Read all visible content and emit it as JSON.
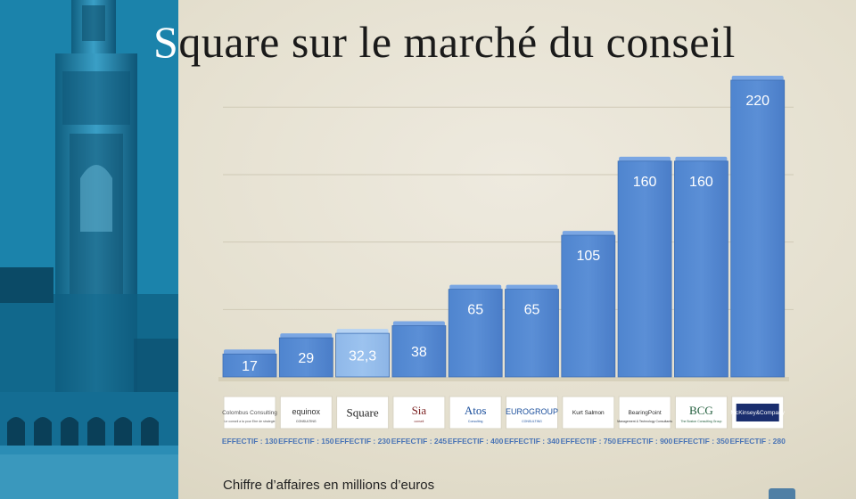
{
  "title": {
    "first_letter": "S",
    "rest": "quare sur le marché du conseil"
  },
  "footnote": "Chiffre d’affaires en millions d’euros",
  "logos": [
    {
      "name": "Colombus Consulting",
      "lines": [
        "Colombus Consulting",
        "Le conseil a la pour Etre de strategie"
      ],
      "color": "#555555"
    },
    {
      "name": "equinox",
      "lines": [
        "equinox",
        "CONSULTING"
      ],
      "color": "#333333"
    },
    {
      "name": "Square",
      "lines": [
        "Square"
      ],
      "color": "#222222"
    },
    {
      "name": "Sia",
      "lines": [
        "Sia",
        "conseil"
      ],
      "color": "#7a1f1f"
    },
    {
      "name": "Atos Consulting",
      "lines": [
        "Atos",
        "Consulting"
      ],
      "color": "#1b4f9c"
    },
    {
      "name": "EUROGROUP",
      "lines": [
        "EUROGROUP",
        "CONSULTING"
      ],
      "color": "#1b4f9c"
    },
    {
      "name": "Kurt Salmon",
      "lines": [
        "Kurt Salmon"
      ],
      "color": "#222222"
    },
    {
      "name": "BearingPoint",
      "lines": [
        "BearingPoint",
        "Management & Technology Consultants"
      ],
      "color": "#333333"
    },
    {
      "name": "BCG",
      "lines": [
        "BCG",
        "The Boston Consulting Group"
      ],
      "color": "#1f5c3a"
    },
    {
      "name": "McKinsey&Company",
      "lines": [
        "McKinsey&Company"
      ],
      "color": "#ffffff",
      "bg": "#1a2e6e"
    }
  ],
  "chart_data": {
    "type": "bar",
    "categories": [
      "Colombus Consulting",
      "equinox",
      "Square",
      "Sia",
      "Atos Consulting",
      "EUROGROUP",
      "Kurt Salmon",
      "BearingPoint",
      "BCG",
      "McKinsey&Company"
    ],
    "values": [
      17,
      29,
      32.3,
      38,
      65,
      65,
      105,
      160,
      160,
      220
    ],
    "value_labels": [
      "17",
      "29",
      "32,3",
      "38",
      "65",
      "65",
      "105",
      "160",
      "160",
      "220"
    ],
    "effectif_labels": [
      "EFFECTIF : 130",
      "EFFECTIF : 150",
      "EFFECTIF : 230",
      "EFFECTIF : 245",
      "EFFECTIF : 400",
      "EFFECTIF : 340",
      "EFFECTIF : 750",
      "EFFECTIF : 900",
      "EFFECTIF : 350",
      "EFFECTIF : 280"
    ],
    "highlight_index": 2,
    "ylim": [
      0,
      220
    ],
    "grid": true,
    "colors": {
      "bar": "#5b8fd6",
      "bar_highlight": "#9cc3ef",
      "effectif": "#4a74b5"
    }
  }
}
